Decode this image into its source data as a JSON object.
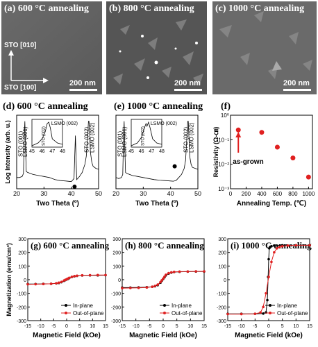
{
  "sem_panels": [
    {
      "label": "(a) 600 °C annealing",
      "scale_bar": "200 nm",
      "dir_y": "STO [010]",
      "dir_x": "STO [100]"
    },
    {
      "label": "(b) 800 °C annealing",
      "scale_bar": "200 nm"
    },
    {
      "label": "(c) 1000 °C annealing",
      "scale_bar": "200 nm"
    }
  ],
  "chart_data": [
    {
      "type": "line",
      "panel": "(d)",
      "title": "600 °C annealing",
      "xlabel": "Two Theta (º)",
      "ylabel": "Log Intensity (arb. u.)",
      "xlim": [
        20,
        50
      ],
      "x_ticks": [
        "20",
        "30",
        "40",
        "50"
      ],
      "peak_labels": [
        "STO (001)",
        "LSMO (001)",
        "STO (002)",
        "LSMO (002)"
      ],
      "inset": {
        "x_ticks": [
          "45",
          "46",
          "47",
          "48"
        ],
        "labels": [
          "LSMO (002)",
          "STO (002)"
        ]
      },
      "x": [
        20,
        21,
        22,
        22.5,
        22.8,
        23,
        23.2,
        23.5,
        24,
        26,
        28,
        30,
        32,
        34,
        36,
        38,
        40,
        41,
        41.5,
        42,
        43,
        44,
        45,
        45.5,
        46,
        46.3,
        46.5,
        46.7,
        47,
        47.5,
        48,
        49,
        50
      ],
      "y": [
        0.55,
        0.55,
        0.6,
        0.75,
        2.6,
        3.3,
        2.2,
        0.85,
        0.8,
        0.7,
        0.65,
        0.6,
        0.55,
        0.45,
        0.4,
        0.38,
        0.35,
        0.5,
        2.6,
        0.45,
        0.6,
        0.8,
        1.2,
        1.6,
        2.6,
        3.3,
        3.3,
        2.8,
        1.8,
        1.3,
        1.1,
        1.0,
        0.95
      ],
      "marker": {
        "x": 41.2,
        "y": 0.1
      }
    },
    {
      "type": "line",
      "panel": "(e)",
      "title": "1000 °C annealing",
      "xlabel": "Two Theta (º)",
      "xlim": [
        20,
        50
      ],
      "x_ticks": [
        "20",
        "30",
        "40",
        "50"
      ],
      "peak_labels": [
        "STO (001)",
        "LSMO (001)",
        "STO (002)",
        "LSMO (002)"
      ],
      "inset": {
        "x_ticks": [
          "45",
          "46",
          "47",
          "48"
        ],
        "labels": [
          "LSMO (002)",
          "STO (002)"
        ]
      },
      "x": [
        20,
        21,
        22,
        22.5,
        22.8,
        23,
        23.2,
        23.5,
        24,
        26,
        28,
        30,
        32,
        34,
        36,
        38,
        40,
        41,
        42,
        43,
        44,
        45,
        45.5,
        46,
        46.3,
        46.5,
        46.7,
        47,
        47.5,
        48,
        49,
        50
      ],
      "y": [
        0.55,
        0.5,
        0.55,
        0.7,
        2.6,
        3.3,
        2.2,
        0.8,
        0.75,
        0.65,
        0.6,
        0.55,
        0.5,
        0.45,
        0.42,
        0.4,
        0.38,
        0.37,
        0.4,
        0.55,
        0.7,
        1.0,
        1.4,
        2.6,
        3.3,
        3.3,
        2.6,
        1.6,
        1.2,
        1.05,
        1.0,
        0.95
      ],
      "marker": {
        "x": 41.5,
        "y": 1.1
      }
    },
    {
      "type": "scatter",
      "panel": "(f)",
      "xlabel": "Annealing Temp. (℃)",
      "ylabel": "Resistivity (Ω-㎝)",
      "xlim": [
        0,
        1050
      ],
      "ylim_log10": [
        -3,
        0
      ],
      "x_ticks": [
        "0",
        "200",
        "400",
        "600",
        "800",
        "1000"
      ],
      "y_ticks": [
        "10⁰",
        "10⁻¹",
        "10⁻²",
        "10⁻³"
      ],
      "annotation": "as-grown",
      "x": [
        100,
        400,
        600,
        800,
        1000
      ],
      "y": [
        0.25,
        0.2,
        0.05,
        0.018,
        0.003
      ],
      "color": "#e02020"
    },
    {
      "type": "line",
      "panel": "(g)",
      "title": "600 °C annealing",
      "xlabel": "Magnetic Field (kOe)",
      "ylabel": "Magnetization (emu/cm³)",
      "xlim": [
        -15,
        15
      ],
      "ylim": [
        -300,
        300
      ],
      "x_ticks": [
        "-15",
        "-10",
        "-5",
        "0",
        "5",
        "10",
        "15"
      ],
      "y_ticks": [
        "-300",
        "-200",
        "-100",
        "0",
        "100",
        "200",
        "300"
      ],
      "legend": [
        "In-plane",
        "Out-of-plane"
      ],
      "series": [
        {
          "name": "In-plane",
          "color": "#000000",
          "x": [
            -15,
            -12,
            -9,
            -6,
            -4,
            -3,
            -2,
            -1,
            -0.5,
            0,
            0.5,
            1,
            2,
            3,
            4,
            6,
            9,
            12,
            15
          ],
          "y": [
            -32,
            -32,
            -31,
            -30,
            -27,
            -24,
            -18,
            -8,
            -3,
            2,
            6,
            12,
            20,
            25,
            28,
            31,
            32,
            32,
            33
          ]
        },
        {
          "name": "Out-of-plane",
          "color": "#e02020",
          "x": [
            -15,
            -12,
            -9,
            -6,
            -4,
            -3,
            -2,
            -1,
            -0.5,
            0,
            0.5,
            1,
            2,
            3,
            4,
            6,
            9,
            12,
            15
          ],
          "y": [
            -34,
            -33,
            -32,
            -30,
            -26,
            -22,
            -16,
            -6,
            -1,
            3,
            8,
            14,
            21,
            26,
            29,
            32,
            33,
            34,
            34
          ]
        }
      ]
    },
    {
      "type": "line",
      "panel": "(h)",
      "title": "800 °C annealing",
      "xlabel": "Magnetic Field (kOe)",
      "xlim": [
        -15,
        15
      ],
      "ylim": [
        -300,
        300
      ],
      "x_ticks": [
        "-15",
        "-10",
        "-5",
        "0",
        "5",
        "10",
        "15"
      ],
      "y_ticks": [
        "-300",
        "-200",
        "-100",
        "0",
        "100",
        "200",
        "300"
      ],
      "legend": [
        "In-plane",
        "Out-of-plane"
      ],
      "series": [
        {
          "name": "In-plane",
          "color": "#000000",
          "x": [
            -15,
            -12,
            -9,
            -6,
            -4,
            -3,
            -2,
            -1,
            -0.5,
            0,
            0.5,
            1,
            2,
            3,
            4,
            6,
            9,
            12,
            15
          ],
          "y": [
            -58,
            -58,
            -57,
            -55,
            -52,
            -48,
            -40,
            -22,
            -8,
            5,
            18,
            32,
            45,
            52,
            56,
            58,
            59,
            60,
            60
          ]
        },
        {
          "name": "Out-of-plane",
          "color": "#e02020",
          "x": [
            -15,
            -12,
            -9,
            -6,
            -4,
            -3,
            -2,
            -1,
            -0.5,
            0,
            0.5,
            1,
            2,
            3,
            4,
            6,
            9,
            12,
            15
          ],
          "y": [
            -62,
            -61,
            -60,
            -57,
            -52,
            -46,
            -36,
            -18,
            -5,
            8,
            22,
            36,
            48,
            54,
            57,
            59,
            60,
            61,
            61
          ]
        }
      ]
    },
    {
      "type": "line",
      "panel": "(i)",
      "title": "1000 °C annealing",
      "xlabel": "Magnetic Field (kOe)",
      "xlim": [
        -15,
        15
      ],
      "ylim": [
        -300,
        300
      ],
      "x_ticks": [
        "-15",
        "-10",
        "-5",
        "0",
        "5",
        "10",
        "15"
      ],
      "y_ticks": [
        "-300",
        "-200",
        "-100",
        "0",
        "100",
        "200",
        "300"
      ],
      "legend": [
        "In-plane",
        "Out-of-plane"
      ],
      "series": [
        {
          "name": "In-plane",
          "color": "#000000",
          "x": [
            -15,
            -10,
            -5,
            -2,
            -1,
            -0.5,
            -0.2,
            0,
            0.2,
            0.5,
            1,
            2,
            5,
            10,
            15
          ],
          "y": [
            -250,
            -250,
            -250,
            -248,
            -240,
            -150,
            20,
            150,
            230,
            240,
            245,
            250,
            252,
            252,
            252
          ]
        },
        {
          "name": "Out-of-plane",
          "color": "#e02020",
          "x": [
            -15,
            -10,
            -5,
            -3,
            -2,
            -1,
            0,
            1,
            2,
            3,
            4,
            5,
            7,
            10,
            15
          ],
          "y": [
            -252,
            -252,
            -250,
            -240,
            -200,
            -100,
            20,
            130,
            200,
            230,
            240,
            245,
            250,
            252,
            252
          ]
        }
      ]
    }
  ]
}
